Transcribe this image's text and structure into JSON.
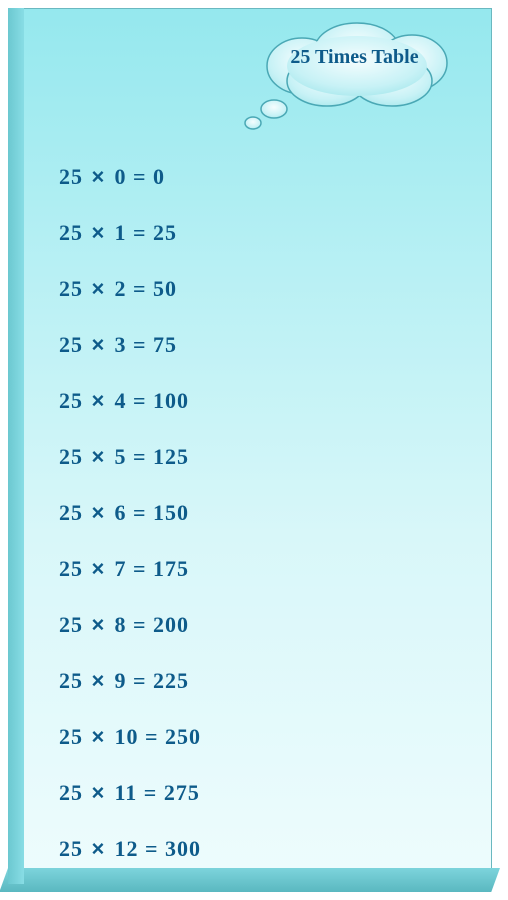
{
  "card": {
    "title": "25 Times Table",
    "title_color": "#0e5b8a",
    "title_fontsize": 20,
    "background_gradient": [
      "#95e8ee",
      "#b8f0f4",
      "#d8f7f9",
      "#eefcfd"
    ],
    "edge_color": "#6bc8d0",
    "border_color": "#6ab8c0",
    "bubble_fill": "#d5f5f8",
    "bubble_stroke": "#4aa8b5"
  },
  "table": {
    "multiplicand": 25,
    "multiplier_start": 0,
    "multiplier_end": 12,
    "text_color": "#0e5b8a",
    "fontsize": 22,
    "row_gap": 30,
    "times_symbol": "×",
    "equals_symbol": "=",
    "rows": [
      {
        "a": 25,
        "b": 0,
        "r": 0
      },
      {
        "a": 25,
        "b": 1,
        "r": 25
      },
      {
        "a": 25,
        "b": 2,
        "r": 50
      },
      {
        "a": 25,
        "b": 3,
        "r": 75
      },
      {
        "a": 25,
        "b": 4,
        "r": 100
      },
      {
        "a": 25,
        "b": 5,
        "r": 125
      },
      {
        "a": 25,
        "b": 6,
        "r": 150
      },
      {
        "a": 25,
        "b": 7,
        "r": 175
      },
      {
        "a": 25,
        "b": 8,
        "r": 200
      },
      {
        "a": 25,
        "b": 9,
        "r": 225
      },
      {
        "a": 25,
        "b": 10,
        "r": 250
      },
      {
        "a": 25,
        "b": 11,
        "r": 275
      },
      {
        "a": 25,
        "b": 12,
        "r": 300
      }
    ]
  }
}
